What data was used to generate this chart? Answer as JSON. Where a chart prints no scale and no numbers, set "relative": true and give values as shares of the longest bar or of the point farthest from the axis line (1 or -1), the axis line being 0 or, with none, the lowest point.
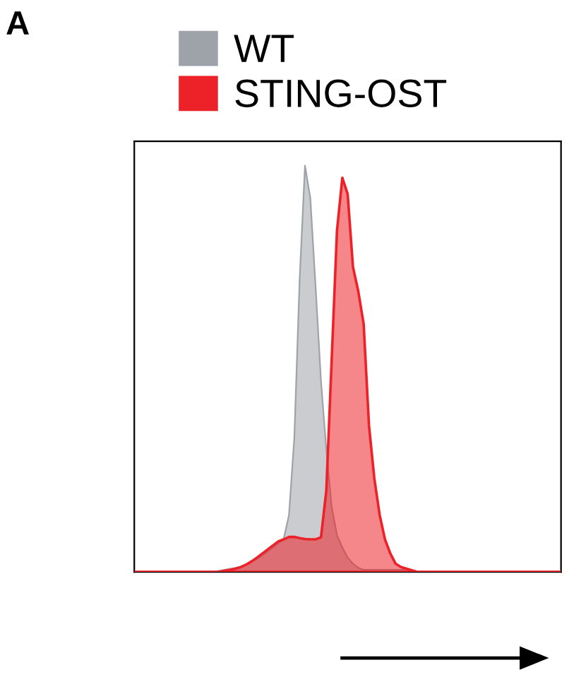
{
  "chart_data": {
    "type": "area",
    "relative": true,
    "annotations": [
      "A"
    ],
    "legend": "top",
    "categories": [
      null,
      null,
      null,
      null,
      null,
      null,
      null,
      null,
      null,
      null,
      null,
      null,
      null,
      null,
      null,
      null,
      null,
      null,
      null,
      null,
      null,
      null,
      null,
      null,
      null,
      null,
      null,
      null,
      null,
      null,
      null,
      null,
      null,
      null,
      null,
      null,
      null,
      null,
      null,
      null,
      null,
      null,
      null,
      null,
      null,
      null,
      null,
      null,
      null,
      null,
      null,
      null,
      null,
      null,
      null,
      null,
      null,
      null,
      null,
      null,
      null,
      null,
      null,
      null,
      null,
      null,
      null,
      null,
      null,
      null,
      null,
      null,
      null,
      null,
      null,
      null,
      null,
      null,
      null,
      null,
      null
    ],
    "series": [
      {
        "name": "WT",
        "color": "#9ea3a9",
        "values": [
          0,
          0,
          0,
          0,
          0,
          0,
          0,
          0,
          0,
          0,
          0,
          0,
          0,
          0,
          0,
          0,
          0.003,
          0.005,
          0.008,
          0.01,
          0.013,
          0.018,
          0.025,
          0.032,
          0.04,
          0.05,
          0.06,
          0.07,
          0.08,
          0.14,
          0.33,
          0.72,
          1,
          0.92,
          0.7,
          0.47,
          0.3,
          0.16,
          0.09,
          0.06,
          0.035,
          0.02,
          0.01,
          0.005,
          0.005,
          0.005,
          0.005,
          0.005,
          0.005,
          0.005,
          0.005,
          0.005,
          0.003,
          0,
          0,
          0,
          0,
          0,
          0,
          0,
          0,
          0,
          0,
          0,
          0,
          0,
          0,
          0,
          0,
          0,
          0,
          0,
          0,
          0,
          0,
          0,
          0,
          0,
          0,
          0,
          0
        ]
      },
      {
        "name": "STING-OST",
        "color": "#ec2228",
        "values": [
          0,
          0,
          0,
          0,
          0,
          0,
          0,
          0,
          0,
          0,
          0,
          0,
          0,
          0,
          0,
          0,
          0,
          0.003,
          0.005,
          0.008,
          0.012,
          0.018,
          0.026,
          0.035,
          0.045,
          0.055,
          0.065,
          0.075,
          0.08,
          0.086,
          0.086,
          0.083,
          0.081,
          0.08,
          0.08,
          0.085,
          0.2,
          0.52,
          0.84,
          0.97,
          0.93,
          0.75,
          0.69,
          0.61,
          0.36,
          0.23,
          0.14,
          0.08,
          0.045,
          0.02,
          0.012,
          0.008,
          0.004,
          0,
          0,
          0,
          0,
          0,
          0,
          0,
          0,
          0,
          0,
          0,
          0,
          0,
          0,
          0,
          0,
          0,
          0,
          0,
          0,
          0,
          0,
          0,
          0,
          0,
          0,
          0,
          0
        ]
      }
    ]
  }
}
